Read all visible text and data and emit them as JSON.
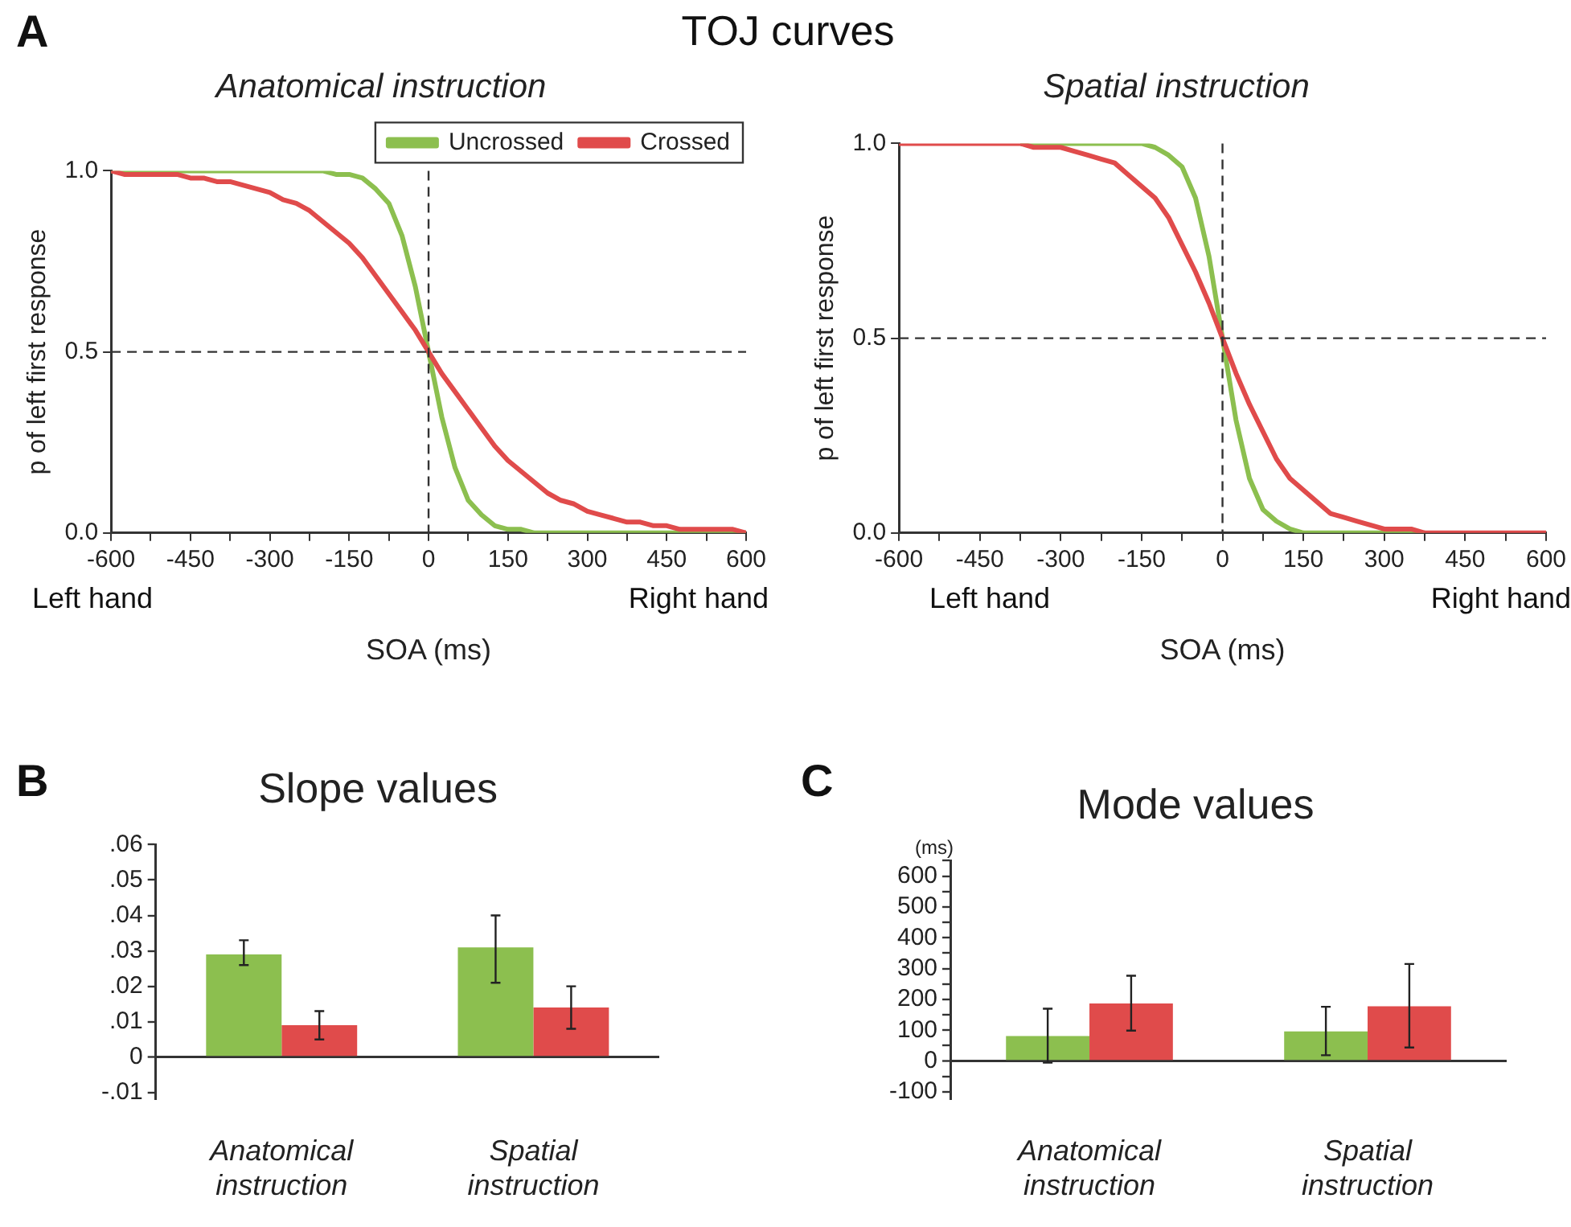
{
  "chart_data": [
    {
      "type": "line",
      "title": "Anatomical instruction",
      "xlabel": "SOA (ms)",
      "ylabel": "p of left first response",
      "annotations": [
        "A",
        "TOJ curves",
        "Left hand",
        "Right hand"
      ],
      "x": [
        -600,
        -575,
        -550,
        -525,
        -500,
        -475,
        -450,
        -425,
        -400,
        -375,
        -350,
        -325,
        -300,
        -275,
        -250,
        -225,
        -200,
        -175,
        -150,
        -125,
        -100,
        -75,
        -50,
        -25,
        0,
        25,
        50,
        75,
        100,
        125,
        150,
        175,
        200,
        225,
        250,
        275,
        300,
        325,
        350,
        375,
        400,
        425,
        450,
        475,
        500,
        525,
        550,
        575,
        600
      ],
      "series": [
        {
          "name": "Uncrossed",
          "color": "#8cbf4f",
          "values": [
            1,
            1,
            1,
            1,
            1,
            1,
            1,
            1,
            1,
            1,
            1,
            1,
            1,
            1,
            1,
            1,
            1,
            0.99,
            0.99,
            0.98,
            0.95,
            0.91,
            0.82,
            0.68,
            0.5,
            0.32,
            0.18,
            0.09,
            0.05,
            0.02,
            0.01,
            0.01,
            0,
            0,
            0,
            0,
            0,
            0,
            0,
            0,
            0,
            0,
            0,
            0,
            0,
            0,
            0,
            0,
            0
          ]
        },
        {
          "name": "Crossed",
          "color": "#e04b4b",
          "values": [
            1,
            0.99,
            0.99,
            0.99,
            0.99,
            0.99,
            0.98,
            0.98,
            0.97,
            0.97,
            0.96,
            0.95,
            0.94,
            0.92,
            0.91,
            0.89,
            0.86,
            0.83,
            0.8,
            0.76,
            0.71,
            0.66,
            0.61,
            0.56,
            0.5,
            0.44,
            0.39,
            0.34,
            0.29,
            0.24,
            0.2,
            0.17,
            0.14,
            0.11,
            0.09,
            0.08,
            0.06,
            0.05,
            0.04,
            0.03,
            0.03,
            0.02,
            0.02,
            0.01,
            0.01,
            0.01,
            0.01,
            0.01,
            0
          ]
        }
      ],
      "xlim": [
        -600,
        600
      ],
      "xticks": [
        -600,
        {
          "value": -525,
          "label": null
        },
        -450,
        {
          "value": -375,
          "label": null
        },
        -300,
        {
          "value": -225,
          "label": null
        },
        -150,
        {
          "value": -75,
          "label": null
        },
        0,
        {
          "value": 75,
          "label": null
        },
        150,
        {
          "value": 225,
          "label": null
        },
        300,
        {
          "value": 375,
          "label": null
        },
        450,
        {
          "value": 525,
          "label": null
        },
        600
      ],
      "ylim": [
        0,
        1
      ],
      "yticks": [
        {
          "value": 0,
          "label": "0.0"
        },
        0.5,
        {
          "value": 1,
          "label": "1.0"
        }
      ],
      "ref_lines": [
        {
          "axis": "x",
          "value": 0,
          "color": "#333333",
          "line_style": "dashed"
        },
        {
          "axis": "y",
          "value": 0.5,
          "color": "#333333",
          "line_style": "dashed"
        }
      ],
      "legend": "top right",
      "marker": "none"
    },
    {
      "type": "line",
      "title": "Spatial instruction",
      "xlabel": "SOA (ms)",
      "ylabel": "p of left first response",
      "annotations": [
        "Left hand",
        "Right hand"
      ],
      "x": [
        -600,
        -575,
        -550,
        -525,
        -500,
        -475,
        -450,
        -425,
        -400,
        -375,
        -350,
        -325,
        -300,
        -275,
        -250,
        -225,
        -200,
        -175,
        -150,
        -125,
        -100,
        -75,
        -50,
        -25,
        0,
        25,
        50,
        75,
        100,
        125,
        150,
        175,
        200,
        225,
        250,
        275,
        300,
        325,
        350,
        375,
        400,
        425,
        450,
        475,
        500,
        525,
        550,
        575,
        600
      ],
      "series": [
        {
          "color": "#8cbf4f",
          "values": [
            null,
            null,
            null,
            null,
            null,
            null,
            null,
            null,
            null,
            1,
            1,
            1,
            1,
            1,
            1,
            1,
            1,
            1,
            1,
            0.99,
            0.97,
            0.94,
            0.86,
            0.71,
            0.5,
            0.29,
            0.14,
            0.06,
            0.03,
            0.01,
            0,
            0,
            0,
            0,
            0,
            0,
            0,
            0,
            0,
            0,
            null,
            null,
            null,
            null,
            null,
            null,
            null,
            null,
            null
          ]
        },
        {
          "color": "#e04b4b",
          "values": [
            1,
            1,
            1,
            1,
            1,
            1,
            1,
            1,
            1,
            1,
            0.99,
            0.99,
            0.99,
            0.98,
            0.97,
            0.96,
            0.95,
            0.92,
            0.89,
            0.86,
            0.81,
            0.74,
            0.67,
            0.59,
            0.5,
            0.41,
            0.33,
            0.26,
            0.19,
            0.14,
            0.11,
            0.08,
            0.05,
            0.04,
            0.03,
            0.02,
            0.01,
            0.01,
            0.01,
            0,
            0,
            0,
            0,
            0,
            0,
            0,
            0,
            0,
            0
          ]
        }
      ],
      "xlim": [
        -600,
        600
      ],
      "xticks": [
        -600,
        {
          "value": -525,
          "label": null
        },
        -450,
        {
          "value": -375,
          "label": null
        },
        -300,
        {
          "value": -225,
          "label": null
        },
        -150,
        {
          "value": -75,
          "label": null
        },
        0,
        {
          "value": 75,
          "label": null
        },
        150,
        {
          "value": 225,
          "label": null
        },
        300,
        {
          "value": 375,
          "label": null
        },
        450,
        {
          "value": 525,
          "label": null
        },
        600
      ],
      "ylim": [
        0,
        1
      ],
      "yticks": [
        {
          "value": 0,
          "label": "0.0"
        },
        0.5,
        {
          "value": 1,
          "label": "1.0"
        }
      ],
      "ref_lines": [
        {
          "axis": "x",
          "value": 0,
          "color": "#333333",
          "line_style": "dashed"
        },
        {
          "axis": "y",
          "value": 0.5,
          "color": "#333333",
          "line_style": "dashed"
        }
      ],
      "marker": "none"
    },
    {
      "type": "bar",
      "title": "Slope values",
      "annotations": [
        "B"
      ],
      "categories": [
        "Anatomical instruction",
        "Spatial instruction"
      ],
      "series": [
        {
          "color": "#8cbf4f",
          "values": [
            0.029,
            0.031
          ],
          "errors": [
            [
              0.026,
              0.033
            ],
            [
              0.021,
              0.04
            ]
          ]
        },
        {
          "color": "#e04b4b",
          "values": [
            0.009,
            0.014
          ],
          "errors": [
            [
              0.005,
              0.013
            ],
            [
              0.008,
              0.02
            ]
          ]
        }
      ],
      "ylim": [
        -0.012,
        0.06
      ],
      "yticks": [
        {
          "value": -0.01,
          "label": "-.01"
        },
        0,
        {
          "value": 0.01,
          "label": ".01"
        },
        {
          "value": 0.02,
          "label": ".02"
        },
        {
          "value": 0.03,
          "label": ".03"
        },
        {
          "value": 0.04,
          "label": ".04"
        },
        {
          "value": 0.05,
          "label": ".05"
        },
        {
          "value": 0.06,
          "label": ".06"
        }
      ]
    },
    {
      "type": "bar",
      "title": "Mode values",
      "ylabel": "(ms)",
      "annotations": [
        "C"
      ],
      "categories": [
        "Anatomical instruction",
        "Spatial instruction"
      ],
      "series": [
        {
          "color": "#8cbf4f",
          "values": [
            81,
            96
          ],
          "errors": [
            [
              -5,
              170
            ],
            [
              19,
              176
            ]
          ]
        },
        {
          "color": "#e04b4b",
          "values": [
            187,
            178
          ],
          "errors": [
            [
              99,
              277
            ],
            [
              44,
              315
            ]
          ]
        }
      ],
      "ylim": [
        -125,
        650
      ],
      "yticks": [
        {
          "value": -100,
          "label": "-100"
        },
        {
          "value": -50,
          "label": null
        },
        0,
        {
          "value": 50,
          "label": null
        },
        100,
        {
          "value": 150,
          "label": null
        },
        200,
        {
          "value": 250,
          "label": null
        },
        300,
        {
          "value": 350,
          "label": null
        },
        400,
        {
          "value": 450,
          "label": null
        },
        500,
        {
          "value": 550,
          "label": null
        },
        600,
        {
          "value": 650,
          "label": null
        }
      ]
    }
  ]
}
